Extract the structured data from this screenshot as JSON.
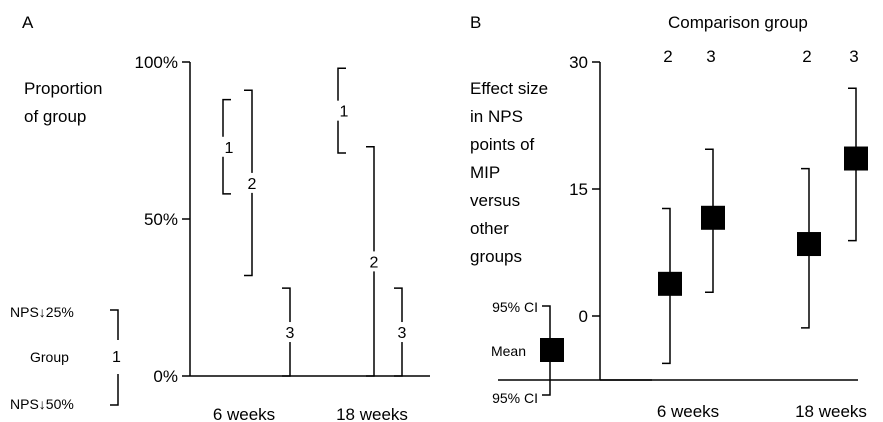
{
  "panel_a": {
    "letter": "A",
    "ylabel": [
      "Proportion",
      "of group"
    ],
    "yticks": [
      "100%",
      "50%",
      "0%"
    ],
    "timepoints": [
      "6 weeks",
      "18 weeks"
    ],
    "legend": {
      "top": "NPS↓25%",
      "middle": "Group",
      "group": "1",
      "bottom": "NPS↓50%"
    }
  },
  "panel_b": {
    "letter": "B",
    "title": "Comparison group",
    "ylabel": [
      "Effect size",
      "in NPS",
      "points of",
      "MIP",
      "versus",
      "other",
      "groups"
    ],
    "yticks": [
      "30",
      "15",
      "0"
    ],
    "group_labels": [
      "2",
      "3",
      "2",
      "3"
    ],
    "timepoints": [
      "6 weeks",
      "18 weeks"
    ],
    "legend": {
      "upper": "95% CI",
      "mean": "Mean",
      "lower": "95% CI"
    }
  },
  "chart_data": [
    {
      "type": "range",
      "panel": "A",
      "ylabel": "Proportion of group",
      "ylim": [
        0,
        100
      ],
      "unit": "%",
      "categories": [
        "6 weeks",
        "18 weeks"
      ],
      "series": [
        {
          "name": "1",
          "low": [
            58,
            71
          ],
          "high": [
            88,
            98
          ]
        },
        {
          "name": "2",
          "low": [
            32,
            0
          ],
          "high": [
            91,
            73
          ]
        },
        {
          "name": "3",
          "low": [
            0,
            0
          ],
          "high": [
            28,
            28
          ]
        }
      ]
    },
    {
      "type": "scatter",
      "panel": "B",
      "title": "Comparison group",
      "ylabel": "Effect size in NPS points of MIP versus other groups",
      "ylim": [
        -8,
        30
      ],
      "yticks": [
        0,
        15,
        30
      ],
      "categories": [
        "6 weeks",
        "18 weeks"
      ],
      "points": [
        {
          "time": "6 weeks",
          "group": "2",
          "mean": 3.8,
          "ci_low": -5.6,
          "ci_high": 12.7
        },
        {
          "time": "6 weeks",
          "group": "3",
          "mean": 11.6,
          "ci_low": 2.8,
          "ci_high": 19.7
        },
        {
          "time": "18 weeks",
          "group": "2",
          "mean": 8.5,
          "ci_low": -1.4,
          "ci_high": 17.4
        },
        {
          "time": "18 weeks",
          "group": "3",
          "mean": 18.6,
          "ci_low": 8.9,
          "ci_high": 26.9
        }
      ]
    }
  ]
}
